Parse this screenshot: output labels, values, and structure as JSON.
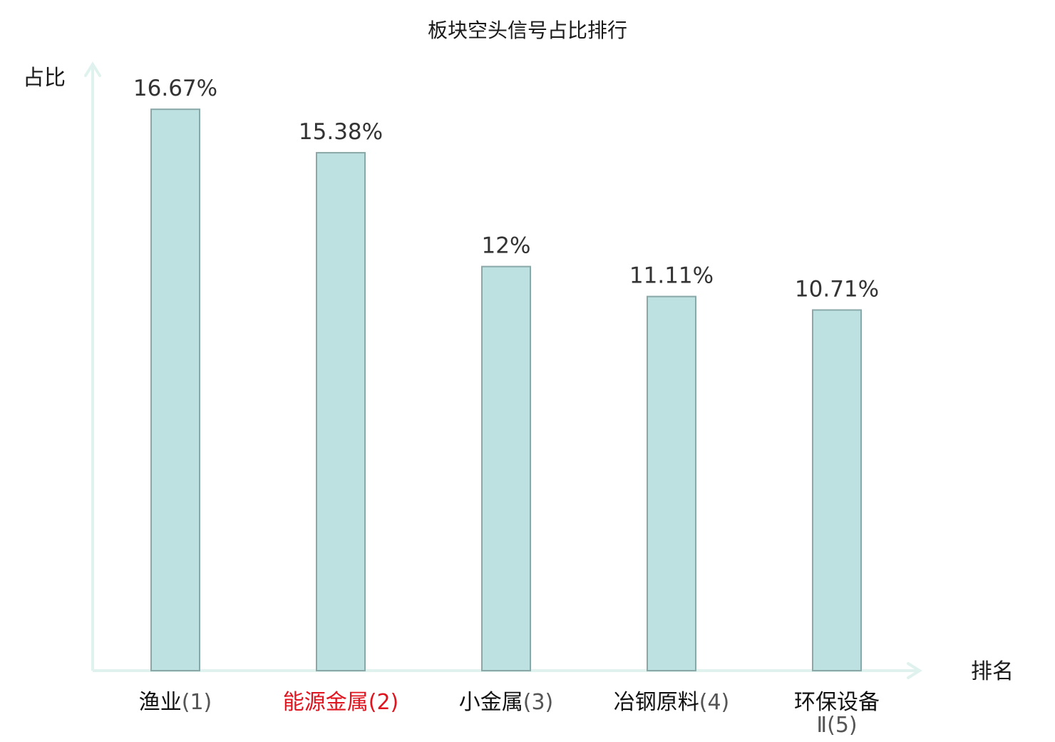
{
  "chart_data": {
    "type": "bar",
    "title": "板块空头信号占比排行",
    "ylabel": "占比",
    "xlabel": "排名",
    "ylim": [
      0,
      20
    ],
    "categories": [
      {
        "name": "渔业",
        "rank": "(1)",
        "highlight": false
      },
      {
        "name": "能源金属",
        "rank": "(2)",
        "highlight": true
      },
      {
        "name": "小金属",
        "rank": "(3)",
        "highlight": false
      },
      {
        "name": "冶钢原料",
        "rank": "(4)",
        "highlight": false
      },
      {
        "name": "环保设备",
        "name_line2": "Ⅱ",
        "rank": "(5)",
        "highlight": false
      }
    ],
    "values": [
      16.67,
      15.38,
      12,
      11.11,
      10.71
    ],
    "value_labels": [
      "16.67%",
      "15.38%",
      "12%",
      "11.11%",
      "10.71%"
    ],
    "grid": false,
    "legend": "none"
  },
  "colors": {
    "bar_fill": "#bde0e1",
    "bar_stroke": "#8aa8a8",
    "axis": "#dff2ee",
    "highlight_text": "#e0141e"
  }
}
